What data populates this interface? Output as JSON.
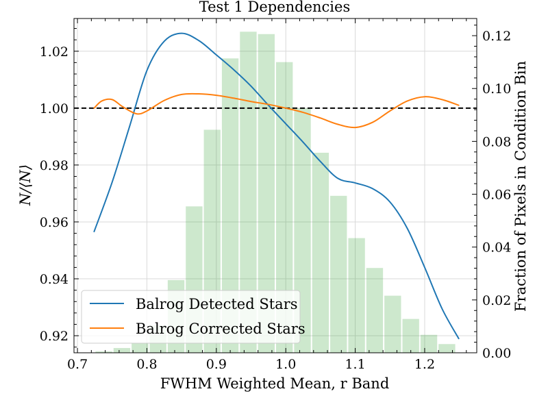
{
  "chart_data": {
    "type": "line",
    "title": "Test 1 Dependencies",
    "xlabel": "FWHM Weighted Mean, r Band",
    "ylabel": "N/⟨N⟩",
    "ylabel_right": "Fraction of Pixels in Condition Bin",
    "xlim": [
      0.695,
      1.275
    ],
    "ylim": [
      0.914,
      1.0315
    ],
    "ylim_right": [
      0.0,
      0.1265
    ],
    "x_ticks": [
      0.7,
      0.8,
      0.9,
      1.0,
      1.1,
      1.2
    ],
    "x_tick_labels": [
      "0.7",
      "0.8",
      "0.9",
      "1.0",
      "1.1",
      "1.2"
    ],
    "y_ticks": [
      0.92,
      0.94,
      0.96,
      0.98,
      1.0,
      1.02
    ],
    "y_tick_labels": [
      "0.92",
      "0.94",
      "0.96",
      "0.98",
      "1.00",
      "1.02"
    ],
    "y2_ticks": [
      0.0,
      0.02,
      0.04,
      0.06,
      0.08,
      0.1,
      0.12
    ],
    "y2_tick_labels": [
      "0.00",
      "0.02",
      "0.04",
      "0.06",
      "0.08",
      "0.10",
      "0.12"
    ],
    "grid": true,
    "legend_position": "lower-left",
    "reference_line": {
      "y": 1.0,
      "style": "dashed",
      "color": "#000000"
    },
    "series": [
      {
        "name": "Balrog Detected Stars",
        "color": "#1f77b4",
        "x": [
          0.724,
          0.75,
          0.775,
          0.8,
          0.825,
          0.85,
          0.875,
          0.9,
          0.925,
          0.95,
          0.975,
          1.0,
          1.025,
          1.05,
          1.075,
          1.1,
          1.125,
          1.15,
          1.175,
          1.2,
          1.225,
          1.249
        ],
        "y": [
          0.9566,
          0.974,
          0.9935,
          1.0132,
          1.0235,
          1.0263,
          1.0237,
          1.0187,
          1.0135,
          1.0077,
          1.001,
          0.9945,
          0.988,
          0.9812,
          0.9753,
          0.9737,
          0.9717,
          0.967,
          0.9577,
          0.944,
          0.9295,
          0.919
        ]
      },
      {
        "name": "Balrog Corrected Stars",
        "color": "#ff7f0e",
        "x": [
          0.724,
          0.735,
          0.75,
          0.765,
          0.785,
          0.8,
          0.825,
          0.85,
          0.875,
          0.9,
          0.925,
          0.95,
          0.975,
          1.0,
          1.025,
          1.05,
          1.075,
          1.1,
          1.125,
          1.15,
          1.175,
          1.2,
          1.225,
          1.249
        ],
        "y": [
          1.0,
          1.0025,
          1.003,
          1.0005,
          0.998,
          0.999,
          1.0027,
          1.0048,
          1.005,
          1.0045,
          1.0035,
          1.0023,
          1.0013,
          1.0,
          0.9985,
          0.9965,
          0.9943,
          0.9932,
          0.995,
          0.999,
          1.0025,
          1.004,
          1.003,
          1.001
        ]
      }
    ],
    "histogram": {
      "color": "#2ca02c",
      "opacity": 0.24,
      "axis": "right",
      "bin_edges": [
        0.725,
        0.751,
        0.777,
        0.803,
        0.829,
        0.855,
        0.881,
        0.907,
        0.933,
        0.959,
        0.985,
        1.011,
        1.037,
        1.063,
        1.089,
        1.115,
        1.141,
        1.167,
        1.193,
        1.219,
        1.245
      ],
      "values": [
        0.0005,
        0.0018,
        0.0035,
        0.0104,
        0.0275,
        0.0554,
        0.0844,
        0.1114,
        0.1215,
        0.1206,
        0.11,
        0.0925,
        0.0757,
        0.0594,
        0.0434,
        0.0321,
        0.0216,
        0.0128,
        0.0068,
        0.0033
      ]
    }
  }
}
